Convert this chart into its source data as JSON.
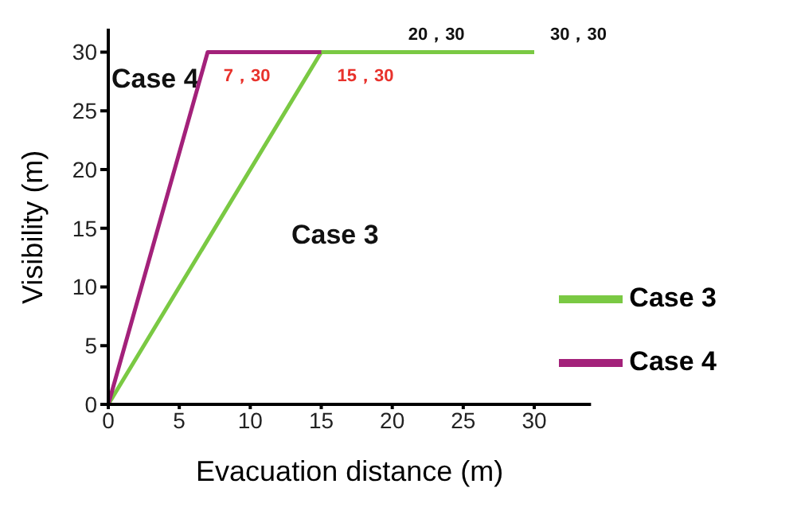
{
  "chart_data": {
    "type": "line",
    "xlabel": "Evacuation distance (m)",
    "ylabel": "Visibility (m)",
    "series": [
      {
        "name": "Case 3",
        "color": "#7ac943",
        "x": [
          0,
          15,
          20,
          30
        ],
        "values": [
          0,
          30,
          30,
          30
        ]
      },
      {
        "name": "Case 4",
        "color": "#a3217a",
        "x": [
          0,
          7,
          15
        ],
        "values": [
          0,
          30,
          30
        ]
      }
    ],
    "xlim": [
      0,
      34
    ],
    "xticks": [
      0,
      5,
      10,
      15,
      20,
      25,
      30
    ],
    "ylim": [
      0,
      32
    ],
    "yticks": [
      0,
      5,
      10,
      15,
      20,
      25,
      30
    ],
    "grid": false,
    "legend": "bottom right",
    "marker": "none",
    "line_style": "solid",
    "annotations": [
      {
        "text": "7，30",
        "x": 7,
        "y": 30
      },
      {
        "text": "15，30",
        "x": 15,
        "y": 30
      },
      {
        "text": "20，30",
        "x": 20,
        "y": 30
      },
      {
        "text": "30，30",
        "x": 30,
        "y": 30
      },
      "Case 4",
      "Case 3"
    ]
  }
}
